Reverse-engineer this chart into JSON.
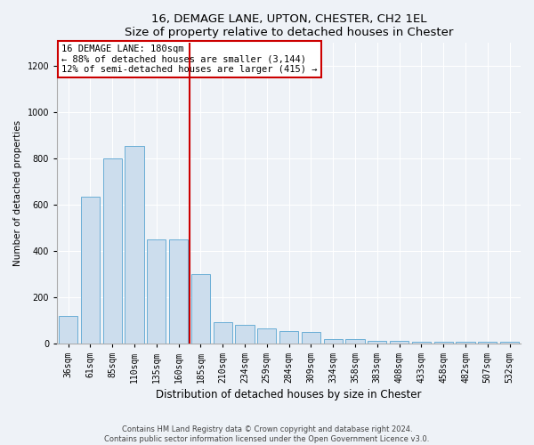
{
  "title": "16, DEMAGE LANE, UPTON, CHESTER, CH2 1EL",
  "subtitle": "Size of property relative to detached houses in Chester",
  "xlabel": "Distribution of detached houses by size in Chester",
  "ylabel": "Number of detached properties",
  "categories": [
    "36sqm",
    "61sqm",
    "85sqm",
    "110sqm",
    "135sqm",
    "160sqm",
    "185sqm",
    "210sqm",
    "234sqm",
    "259sqm",
    "284sqm",
    "309sqm",
    "334sqm",
    "358sqm",
    "383sqm",
    "408sqm",
    "433sqm",
    "458sqm",
    "482sqm",
    "507sqm",
    "532sqm"
  ],
  "values": [
    120,
    635,
    800,
    855,
    450,
    450,
    300,
    90,
    80,
    65,
    55,
    50,
    20,
    20,
    10,
    10,
    5,
    5,
    5,
    5,
    5
  ],
  "bar_color": "#ccdded",
  "bar_edge_color": "#6aaed6",
  "vline_index": 6,
  "annotation_text": "16 DEMAGE LANE: 180sqm\n← 88% of detached houses are smaller (3,144)\n12% of semi-detached houses are larger (415) →",
  "vline_color": "#cc0000",
  "annotation_box_edge_color": "#cc0000",
  "footer_line1": "Contains HM Land Registry data © Crown copyright and database right 2024.",
  "footer_line2": "Contains public sector information licensed under the Open Government Licence v3.0.",
  "ylim": [
    0,
    1300
  ],
  "yticks": [
    0,
    200,
    400,
    600,
    800,
    1000,
    1200
  ],
  "bg_color": "#eef2f7",
  "plot_bg_color": "#eef2f7",
  "title_fontsize": 9.5,
  "ylabel_fontsize": 7.5,
  "xlabel_fontsize": 8.5,
  "tick_fontsize": 7,
  "footer_fontsize": 6,
  "annot_fontsize": 7.5
}
